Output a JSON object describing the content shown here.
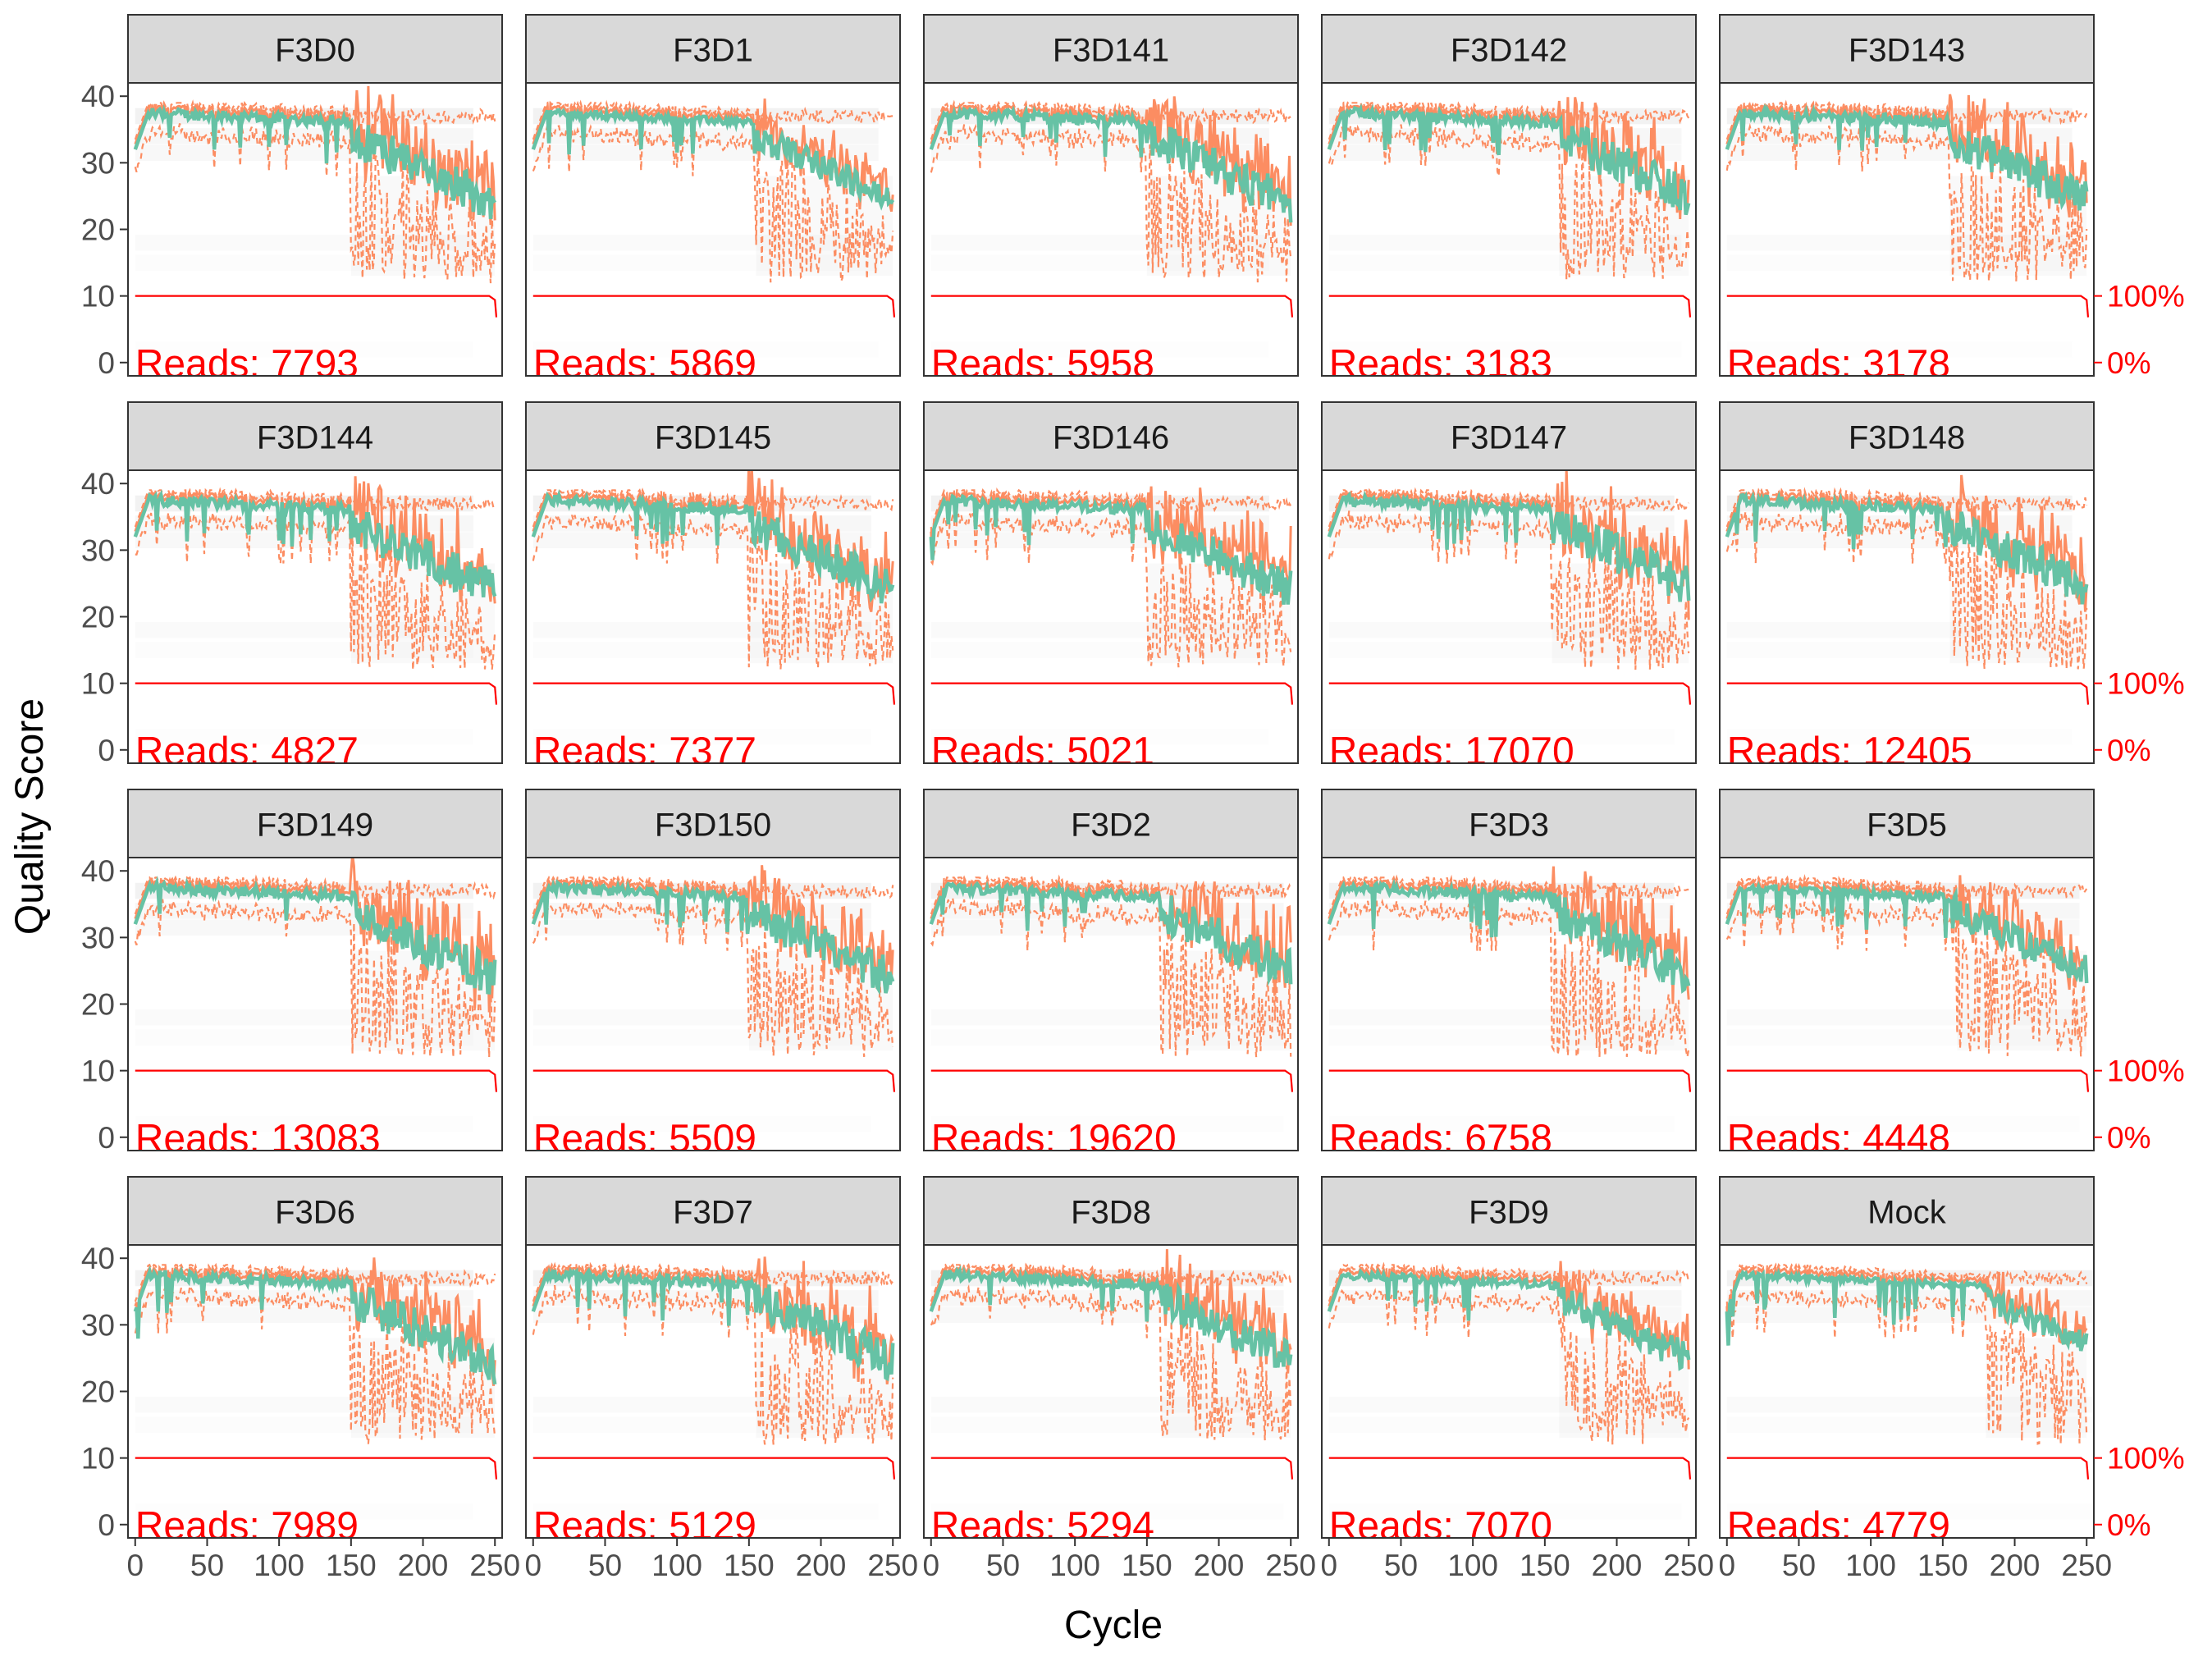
{
  "chart_data": {
    "type": "line",
    "title": "",
    "xlabel": "Cycle",
    "ylabel": "Quality Score",
    "xlim": [
      -5,
      255
    ],
    "ylim": [
      -2,
      42
    ],
    "x_ticks": [
      0,
      50,
      100,
      150,
      200,
      250
    ],
    "y_ticks": [
      0,
      10,
      20,
      30,
      40
    ],
    "right_axis_ticks": [
      "100%",
      "0%"
    ],
    "right_axis_values": [
      10,
      0
    ],
    "reads_prefix": "Reads: ",
    "grid": false,
    "legend": "none",
    "colors": {
      "mean": "#66c2a5",
      "quartile": "#fc8d62",
      "coverage": "#ff0000",
      "heatmap": "#d9d9d9",
      "strip": "#d9d9d9",
      "frame": "#333333",
      "axis_text": "#4d4d4d"
    },
    "panels": [
      {
        "label": "F3D0",
        "reads": "7793",
        "drop": 150,
        "noise": 1.0
      },
      {
        "label": "F3D1",
        "reads": "5869",
        "drop": 155,
        "noise": 0.7
      },
      {
        "label": "F3D141",
        "reads": "5958",
        "drop": 150,
        "noise": 1.0
      },
      {
        "label": "F3D142",
        "reads": "3183",
        "drop": 160,
        "noise": 1.0
      },
      {
        "label": "F3D143",
        "reads": "3178",
        "drop": 155,
        "noise": 1.0
      },
      {
        "label": "F3D144",
        "reads": "4827",
        "drop": 150,
        "noise": 1.0
      },
      {
        "label": "F3D145",
        "reads": "7377",
        "drop": 150,
        "noise": 1.0
      },
      {
        "label": "F3D146",
        "reads": "5021",
        "drop": 150,
        "noise": 1.0
      },
      {
        "label": "F3D147",
        "reads": "17070",
        "drop": 155,
        "noise": 1.0
      },
      {
        "label": "F3D148",
        "reads": "12405",
        "drop": 155,
        "noise": 1.0
      },
      {
        "label": "F3D149",
        "reads": "13083",
        "drop": 150,
        "noise": 1.0
      },
      {
        "label": "F3D150",
        "reads": "5509",
        "drop": 150,
        "noise": 1.0
      },
      {
        "label": "F3D2",
        "reads": "19620",
        "drop": 160,
        "noise": 1.0
      },
      {
        "label": "F3D3",
        "reads": "6758",
        "drop": 155,
        "noise": 1.0
      },
      {
        "label": "F3D5",
        "reads": "4448",
        "drop": 160,
        "noise": 0.8
      },
      {
        "label": "F3D6",
        "reads": "7989",
        "drop": 150,
        "noise": 1.0
      },
      {
        "label": "F3D7",
        "reads": "5129",
        "drop": 155,
        "noise": 1.0
      },
      {
        "label": "F3D8",
        "reads": "5294",
        "drop": 160,
        "noise": 0.9
      },
      {
        "label": "F3D9",
        "reads": "7070",
        "drop": 160,
        "noise": 0.8
      },
      {
        "label": "Mock",
        "reads": "4779",
        "drop": 180,
        "noise": 0.6
      }
    ]
  }
}
